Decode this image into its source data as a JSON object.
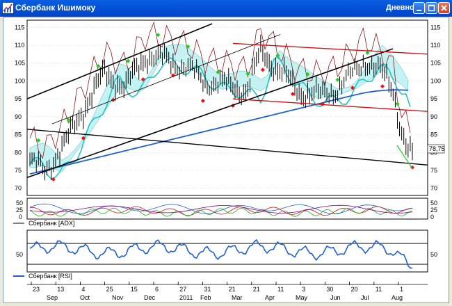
{
  "window": {
    "title": "Сбербанк Ишимоку",
    "context": "Дневной",
    "buttons": [
      "minimize",
      "maximize",
      "close"
    ]
  },
  "main_panel": {
    "y_ticks": [
      "115",
      "110",
      "105",
      "100",
      "95",
      "90",
      "85",
      "80",
      "75",
      "70"
    ],
    "last_price": "78,75",
    "colors": {
      "price_bars": "#000000",
      "cloud": "#7fe3e3",
      "ma_long": "#1f5fd0",
      "ma_mid": "#21c4c9",
      "envelope": "#8b1a1a",
      "channel_up": "#000000",
      "channel_down": "#d01010",
      "buy_marker": "#22cc22",
      "sell_marker": "#ee1111"
    }
  },
  "adx_panel": {
    "label": "Сбербанк [ADX]",
    "ticks_left": [
      "50",
      "25",
      "0"
    ],
    "ticks_right": [
      "50",
      "25",
      "0"
    ]
  },
  "rsi_panel": {
    "label": "Сбербанк [RSI]",
    "tick": "50"
  },
  "x_axis": {
    "days": [
      "23",
      "13",
      "4",
      "25",
      "15",
      "6",
      "27",
      "31",
      "21",
      "21",
      "11",
      "3",
      "30",
      "20",
      "11",
      "1"
    ],
    "months": [
      "Sep",
      "Oct",
      "Nov",
      "Dec",
      "2011",
      "Feb",
      "Mar",
      "Apr",
      "May",
      "Jun",
      "Jul",
      "Aug"
    ]
  }
}
